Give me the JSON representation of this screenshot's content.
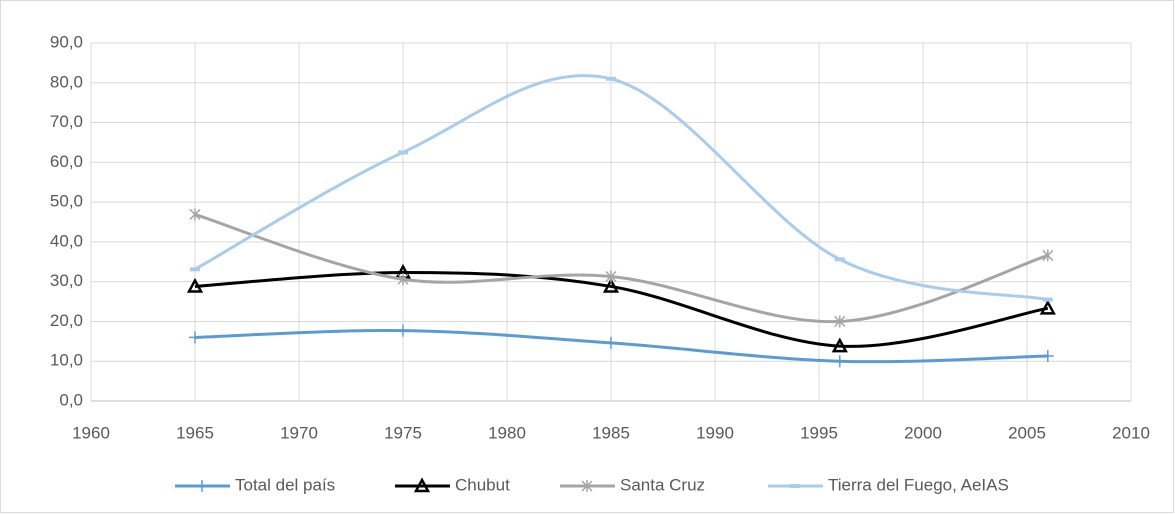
{
  "chart_data": {
    "type": "line",
    "smooth": true,
    "x": [
      1965,
      1975,
      1985,
      1996,
      2006
    ],
    "xlim": [
      1960,
      2010
    ],
    "xticks": [
      1960,
      1965,
      1970,
      1975,
      1980,
      1985,
      1990,
      1995,
      2000,
      2005,
      2010
    ],
    "ylim": [
      0,
      90
    ],
    "yticks": [
      {
        "value": 0,
        "label": "0,0"
      },
      {
        "value": 10,
        "label": "10,0"
      },
      {
        "value": 20,
        "label": "20,0"
      },
      {
        "value": 30,
        "label": "30,0"
      },
      {
        "value": 40,
        "label": "40,0"
      },
      {
        "value": 50,
        "label": "50,0"
      },
      {
        "value": 60,
        "label": "60,0"
      },
      {
        "value": 70,
        "label": "70,0"
      },
      {
        "value": 80,
        "label": "80,0"
      },
      {
        "value": 90,
        "label": "90,0"
      }
    ],
    "grid": true,
    "legend": "bottom",
    "series": [
      {
        "name": "Total del país",
        "color": "#5b9bd5",
        "marker": "plus",
        "values": [
          16.0,
          17.7,
          14.6,
          10.0,
          11.3
        ]
      },
      {
        "name": "Chubut",
        "color": "#000000",
        "marker": "triangle",
        "values": [
          28.8,
          32.3,
          28.8,
          13.8,
          23.3
        ]
      },
      {
        "name": "Santa Cruz",
        "color": "#a5a5a5",
        "marker": "asterisk",
        "values": [
          46.9,
          30.6,
          31.3,
          20.0,
          36.6
        ]
      },
      {
        "name": "Tierra del Fuego, AeIAS",
        "color": "#a9cbec",
        "marker": "dash",
        "values": [
          33.1,
          62.5,
          81.0,
          35.6,
          25.5
        ]
      }
    ]
  }
}
